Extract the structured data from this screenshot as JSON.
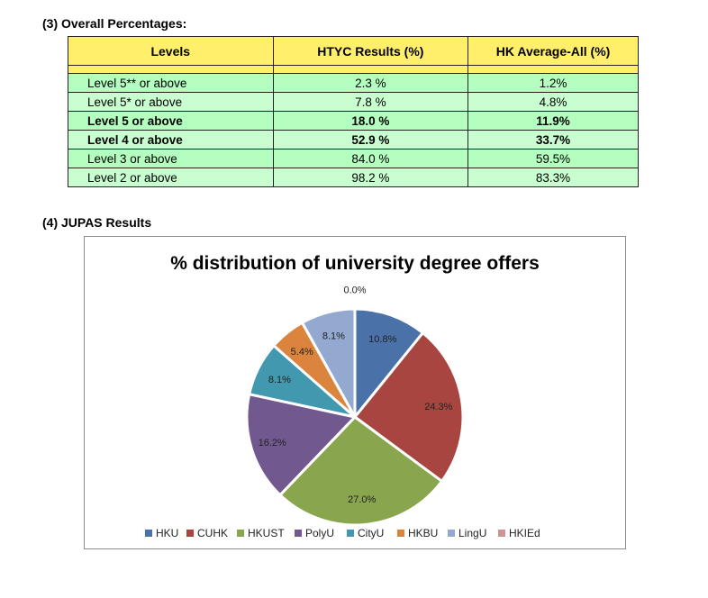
{
  "section3": {
    "heading": "(3)  Overall Percentages:",
    "headers": [
      "Levels",
      "HTYC Results (%)",
      "HK Average-All (%)"
    ],
    "rows": [
      {
        "level": "Level 5** or above",
        "htyc": "2.3 %",
        "hk": "1.2%",
        "bold": false
      },
      {
        "level": "Level 5* or above",
        "htyc": "7.8 %",
        "hk": "4.8%",
        "bold": false
      },
      {
        "level": "Level 5 or above",
        "htyc": "18.0 %",
        "hk": "11.9%",
        "bold": true
      },
      {
        "level": "Level 4 or above",
        "htyc": "52.9 %",
        "hk": "33.7%",
        "bold": true
      },
      {
        "level": "Level 3 or above",
        "htyc": "84.0 %",
        "hk": "59.5%",
        "bold": false
      },
      {
        "level": "Level 2 or above",
        "htyc": "98.2 %",
        "hk": "83.3%",
        "bold": false
      }
    ]
  },
  "section4": {
    "heading": "(4)  JUPAS Results"
  },
  "chart_data": {
    "type": "pie",
    "title": "% distribution of university degree offers",
    "categories": [
      "HKU",
      "CUHK",
      "HKUST",
      "PolyU",
      "CityU",
      "HKBU",
      "LingU",
      "HKIEd"
    ],
    "values": [
      10.8,
      24.3,
      27.0,
      16.2,
      8.1,
      5.4,
      8.1,
      0.0
    ],
    "labels": [
      "10.8%",
      "24.3%",
      "27.0%",
      "16.2%",
      "8.1%",
      "5.4%",
      "8.1%",
      "0.0%"
    ],
    "colors": [
      "#4a72a8",
      "#a84541",
      "#89a54e",
      "#71588f",
      "#4198af",
      "#db843d",
      "#93a9cf",
      "#d19392"
    ],
    "legend_position": "bottom"
  }
}
